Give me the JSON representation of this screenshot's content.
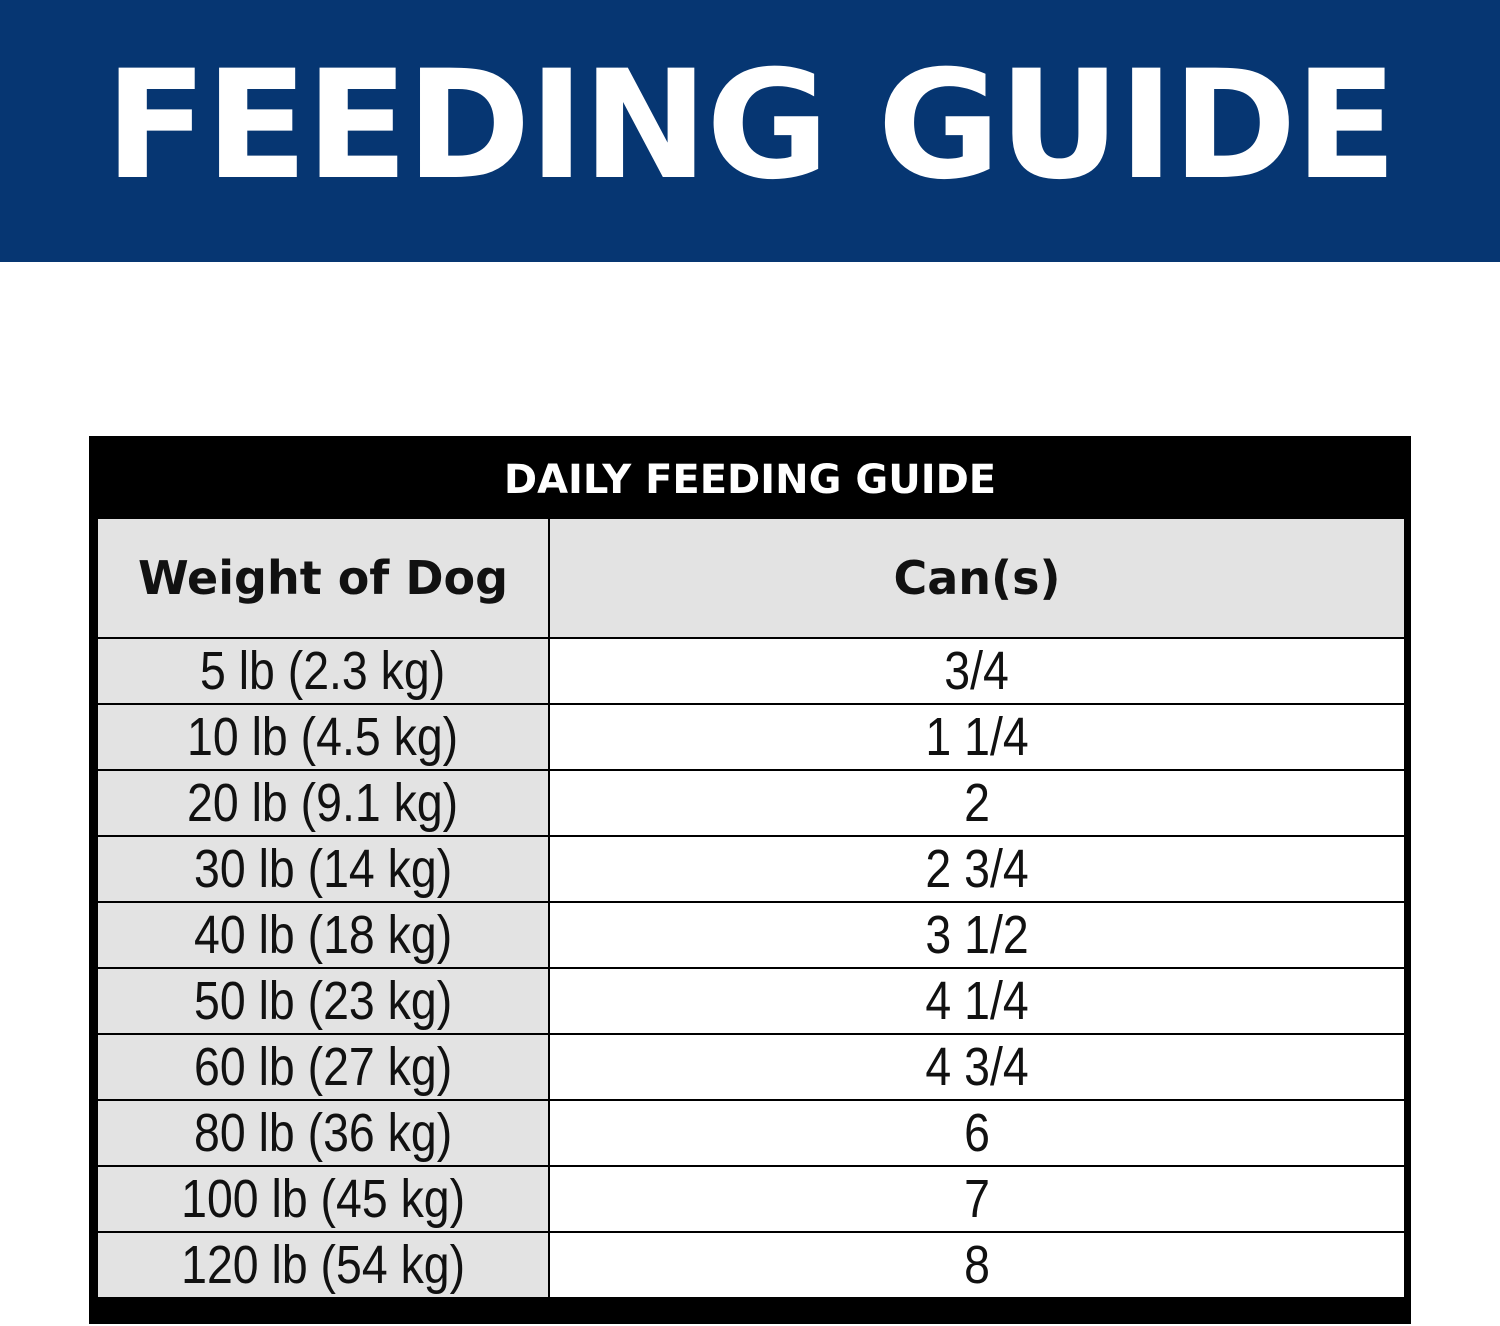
{
  "banner": {
    "title": "FEEDING GUIDE",
    "background_color": "#063672",
    "text_color": "#ffffff"
  },
  "table": {
    "title": "DAILY FEEDING GUIDE",
    "headers": {
      "weight": "Weight of Dog",
      "cans": "Can(s)"
    },
    "rows": [
      {
        "weight": "5 lb (2.3 kg)",
        "cans": "3/4"
      },
      {
        "weight": "10 lb (4.5 kg)",
        "cans": "1 1/4"
      },
      {
        "weight": "20 lb (9.1 kg)",
        "cans": "2"
      },
      {
        "weight": "30 lb (14 kg)",
        "cans": "2 3/4"
      },
      {
        "weight": "40 lb (18 kg)",
        "cans": "3 1/2"
      },
      {
        "weight": "50 lb (23 kg)",
        "cans": "4 1/4"
      },
      {
        "weight": "60 lb (27 kg)",
        "cans": "4 3/4"
      },
      {
        "weight": "80 lb (36 kg)",
        "cans": "6"
      },
      {
        "weight": "100 lb (45 kg)",
        "cans": "7"
      },
      {
        "weight": "120 lb (54 kg)",
        "cans": "8"
      }
    ],
    "header_row_color": "#e3e3e3",
    "weight_column_color": "#e3e3e3",
    "cans_column_color": "#ffffff",
    "title_bar_color": "#000000"
  }
}
